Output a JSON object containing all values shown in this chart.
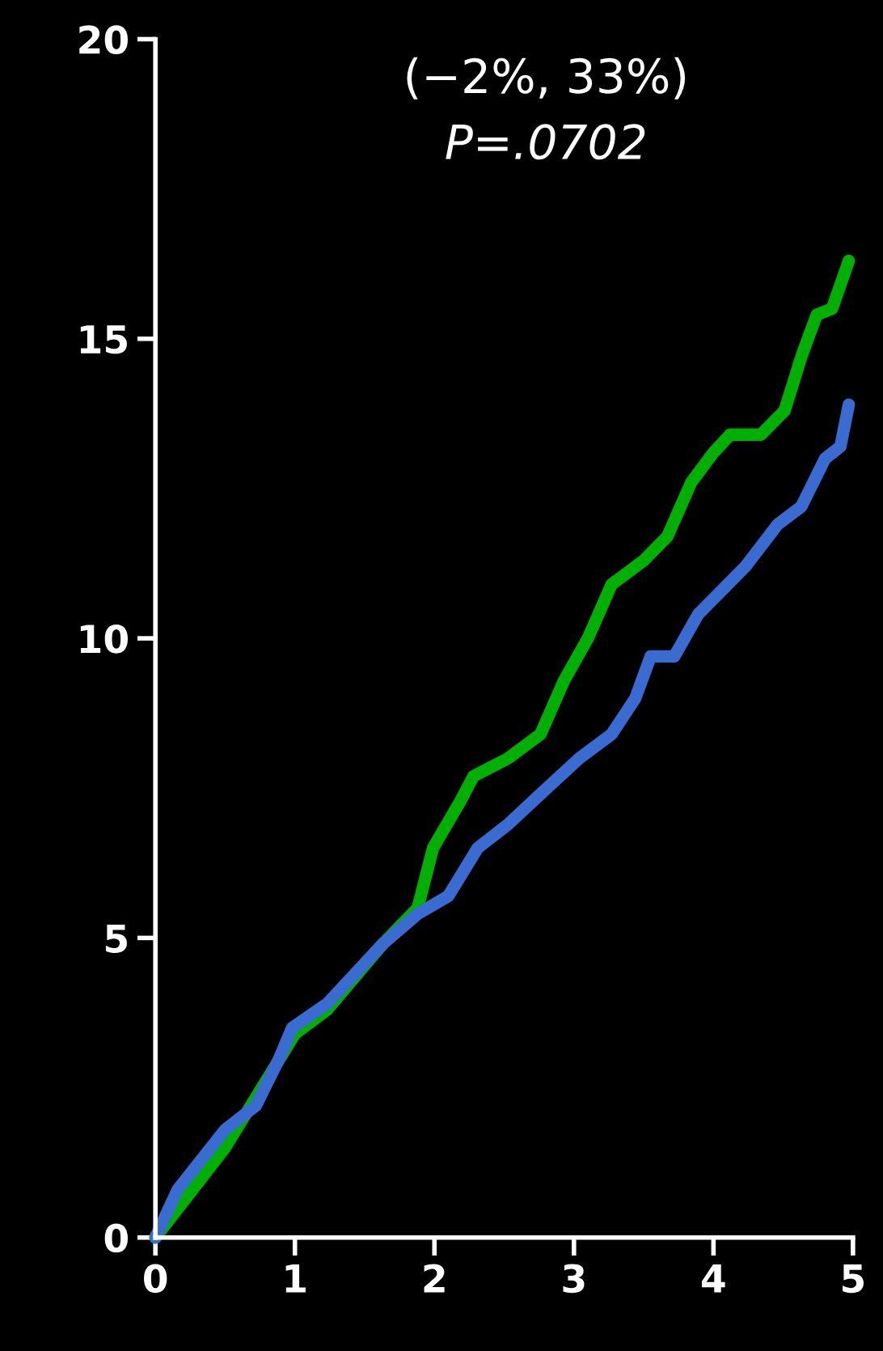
{
  "chart_data": {
    "type": "line",
    "annotations": [
      "(−2%, 33%)",
      "P=.0702"
    ],
    "xlim": [
      0,
      5
    ],
    "ylim": [
      0,
      20
    ],
    "xticks": [
      0,
      1,
      2,
      3,
      4,
      5
    ],
    "yticks": [
      0,
      5,
      10,
      15,
      20
    ],
    "grid": false,
    "legend": false,
    "marker": "none",
    "line_style": "solid",
    "series": [
      {
        "color": "#00b000",
        "x": [
          0,
          0.5,
          1.0,
          1.23,
          1.63,
          1.88,
          1.99,
          2.19,
          2.28,
          2.53,
          2.76,
          2.93,
          3.1,
          3.27,
          3.5,
          3.67,
          3.84,
          4.0,
          4.12,
          4.34,
          4.51,
          4.63,
          4.74,
          4.85,
          4.97
        ],
        "values": [
          0,
          1.5,
          3.4,
          3.8,
          4.9,
          5.5,
          6.5,
          7.3,
          7.7,
          8.0,
          8.4,
          9.3,
          10.0,
          10.9,
          11.3,
          11.7,
          12.6,
          13.1,
          13.4,
          13.4,
          13.8,
          14.7,
          15.4,
          15.5,
          16.3
        ]
      },
      {
        "color": "#3a6bd0",
        "x": [
          0,
          0.16,
          0.5,
          0.72,
          0.89,
          0.98,
          1.23,
          1.63,
          1.88,
          2.1,
          2.31,
          2.53,
          2.76,
          3.04,
          3.27,
          3.44,
          3.55,
          3.72,
          3.89,
          4.23,
          4.46,
          4.63,
          4.8,
          4.91,
          4.97
        ],
        "values": [
          0,
          0.8,
          1.8,
          2.2,
          3.0,
          3.5,
          3.9,
          4.9,
          5.4,
          5.7,
          6.5,
          6.9,
          7.4,
          8.0,
          8.4,
          9.0,
          9.7,
          9.7,
          10.4,
          11.2,
          11.9,
          12.2,
          13.0,
          13.2,
          13.9
        ]
      }
    ]
  }
}
